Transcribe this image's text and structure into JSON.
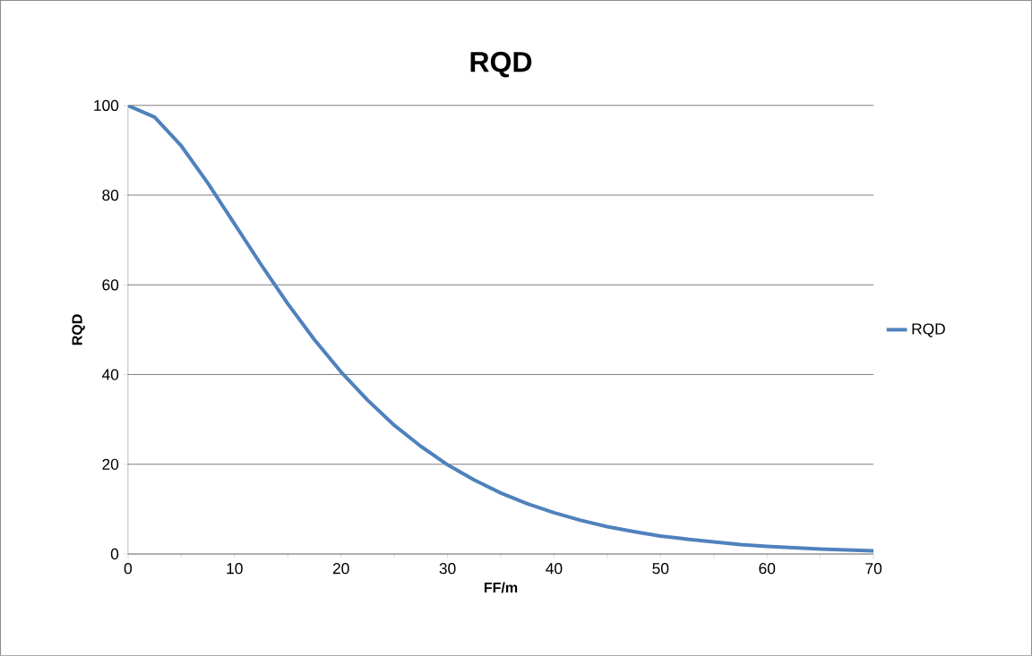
{
  "chart_data": {
    "type": "line",
    "title": "RQD",
    "xlabel": "FF/m",
    "ylabel": "RQD",
    "x": [
      0,
      2.5,
      5,
      7.5,
      10,
      12.5,
      15,
      17.5,
      20,
      22.5,
      25,
      27.5,
      30,
      32.5,
      35,
      37.5,
      40,
      42.5,
      45,
      47.5,
      50,
      52.5,
      55,
      57.5,
      60,
      62.5,
      65,
      67.5,
      70
    ],
    "series": [
      {
        "name": "RQD",
        "color": "#4f81bd",
        "values": [
          100,
          97.4,
          91,
          82.7,
          73.6,
          64.5,
          55.8,
          47.8,
          40.6,
          34.3,
          28.7,
          24,
          19.9,
          16.5,
          13.6,
          11.2,
          9.2,
          7.5,
          6.1,
          5,
          4,
          3.3,
          2.7,
          2.1,
          1.7,
          1.4,
          1.1,
          0.9,
          0.7
        ]
      }
    ],
    "xlim": [
      0,
      70
    ],
    "ylim": [
      0,
      100
    ],
    "xticks": [
      0,
      {
        "value": 5,
        "label": null
      },
      10,
      {
        "value": 15,
        "label": null
      },
      20,
      {
        "value": 25,
        "label": null
      },
      30,
      {
        "value": 35,
        "label": null
      },
      40,
      {
        "value": 45,
        "label": null
      },
      50,
      {
        "value": 55,
        "label": null
      },
      60,
      {
        "value": 65,
        "label": null
      },
      70
    ],
    "yticks": [
      0,
      20,
      40,
      60,
      80,
      100
    ],
    "grid": "y",
    "legend": "right"
  }
}
